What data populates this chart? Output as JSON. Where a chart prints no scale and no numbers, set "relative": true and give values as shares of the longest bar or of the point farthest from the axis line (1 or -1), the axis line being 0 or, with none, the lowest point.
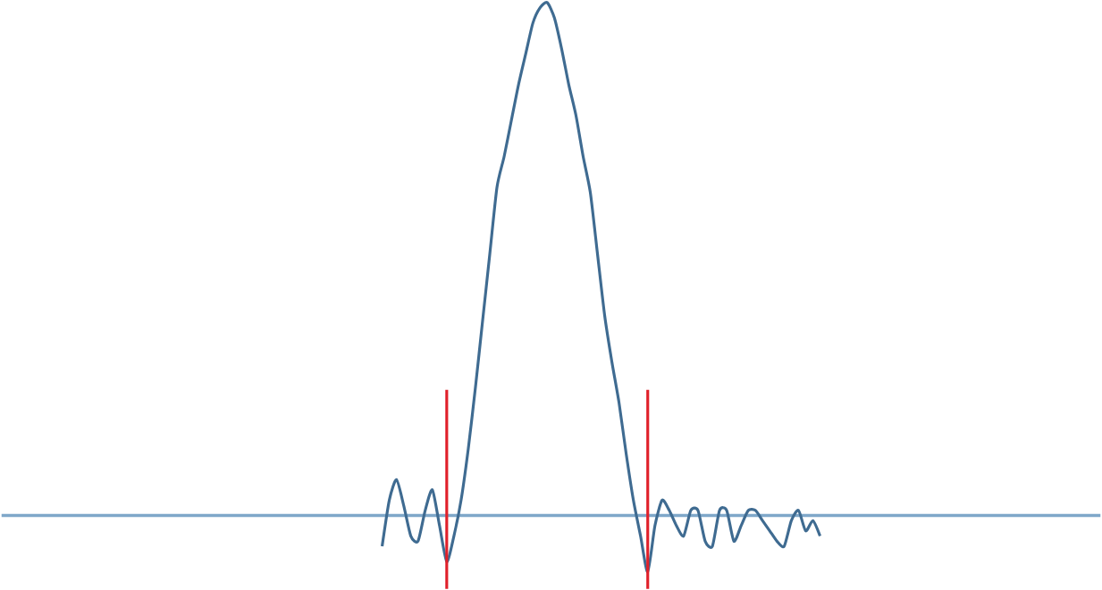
{
  "chart_data": {
    "type": "line",
    "relative": true,
    "categories": [
      null,
      null,
      null,
      null,
      null,
      null,
      null,
      null,
      null,
      null,
      null,
      null,
      null,
      null,
      null,
      null,
      null,
      null,
      null,
      null,
      null,
      null,
      null,
      null,
      null,
      null,
      null,
      null,
      null,
      null,
      null,
      null,
      null,
      null,
      null,
      null,
      null,
      null,
      null,
      null,
      null,
      null,
      null,
      null,
      null,
      null,
      null,
      null,
      null,
      null,
      null,
      null,
      null,
      null,
      null,
      null,
      null,
      null,
      null,
      null,
      null,
      null
    ],
    "series": [
      {
        "color": "#3f6b91",
        "values": [
          -0.06,
          0.03,
          0.07,
          0.02,
          -0.04,
          -0.05,
          0.01,
          0.05,
          -0.02,
          -0.09,
          -0.04,
          0.03,
          0.13,
          0.25,
          0.38,
          0.51,
          0.64,
          0.7,
          0.77,
          0.84,
          0.9,
          0.96,
          0.99,
          1.0,
          0.97,
          0.91,
          0.84,
          0.78,
          0.7,
          0.63,
          0.51,
          0.39,
          0.3,
          0.22,
          0.12,
          0.03,
          -0.04,
          -0.11,
          -0.02,
          0.03,
          0.01,
          -0.02,
          -0.04,
          0.01,
          0.01,
          -0.05,
          -0.06,
          0.01,
          0.01,
          -0.05,
          -0.02,
          0.01,
          0.01,
          -0.01,
          -0.03,
          -0.05,
          -0.06,
          -0.01,
          0.01,
          -0.03,
          -0.01,
          -0.04
        ]
      }
    ],
    "ref_lines": [
      {
        "axis": "y",
        "value": 0,
        "color": "#7fa7c9"
      }
    ]
  }
}
